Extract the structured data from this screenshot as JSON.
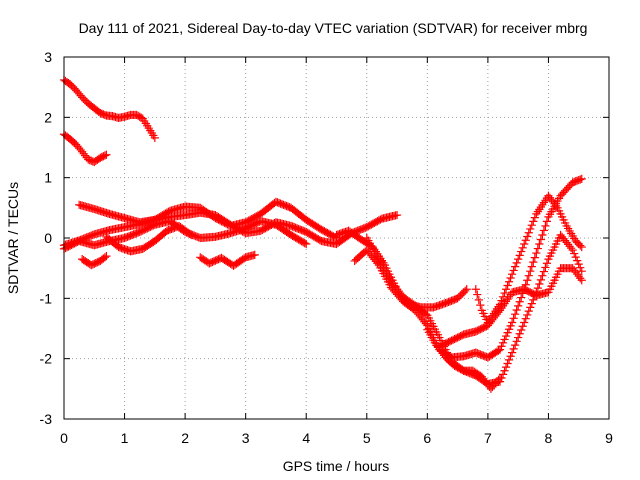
{
  "chart_data": {
    "type": "scatter",
    "title": "Day 111 of 2021, Sidereal Day-to-day VTEC variation (SDTVAR) for receiver mbrg",
    "xlabel": "GPS time / hours",
    "ylabel": "SDTVAR / TECUs",
    "xlim": [
      0,
      9
    ],
    "ylim": [
      -3,
      3
    ],
    "x_ticks": [
      "0",
      "1",
      "2",
      "3",
      "4",
      "5",
      "6",
      "7",
      "8",
      "9"
    ],
    "y_ticks": [
      "3",
      "2",
      "1",
      "0",
      "-1",
      "-2",
      "-3"
    ],
    "grid": true,
    "marker": "+",
    "color": "#ff0000",
    "series": [
      {
        "x": [
          0.0,
          0.1,
          0.2,
          0.3,
          0.4,
          0.5,
          0.6,
          0.7,
          0.8,
          0.9,
          1.0,
          1.1,
          1.2,
          1.3,
          1.4,
          1.5
        ],
        "y": [
          2.62,
          2.55,
          2.45,
          2.33,
          2.23,
          2.15,
          2.07,
          2.03,
          2.02,
          1.99,
          2.01,
          2.04,
          2.04,
          1.98,
          1.82,
          1.66
        ]
      },
      {
        "x": [
          0.0,
          0.1,
          0.2,
          0.3,
          0.4,
          0.5,
          0.6,
          0.7
        ],
        "y": [
          1.72,
          1.64,
          1.55,
          1.43,
          1.3,
          1.26,
          1.33,
          1.38
        ]
      },
      {
        "x": [
          0.0,
          0.25,
          0.5,
          0.75,
          1.0,
          1.25,
          1.5,
          1.75,
          2.0,
          2.25,
          2.5,
          2.75,
          3.0,
          3.25,
          3.5,
          3.75,
          4.0,
          4.25,
          4.5,
          4.75,
          5.0,
          5.25,
          5.5
        ],
        "y": [
          -0.12,
          -0.04,
          0.06,
          0.13,
          0.18,
          0.23,
          0.3,
          0.35,
          0.38,
          0.42,
          0.38,
          0.22,
          0.08,
          0.12,
          0.26,
          0.2,
          0.1,
          -0.05,
          -0.1,
          0.08,
          0.18,
          0.32,
          0.38
        ]
      },
      {
        "x": [
          0.25,
          0.5,
          0.75,
          1.0,
          1.25,
          1.5,
          1.75,
          2.0,
          2.25,
          2.5,
          2.75,
          3.0,
          3.25,
          3.5,
          3.75,
          4.0,
          4.25,
          4.5
        ],
        "y": [
          0.55,
          0.48,
          0.4,
          0.33,
          0.26,
          0.3,
          0.45,
          0.52,
          0.5,
          0.33,
          0.2,
          0.26,
          0.4,
          0.6,
          0.5,
          0.3,
          0.14,
          0.0
        ]
      },
      {
        "x": [
          0.0,
          0.25,
          0.5,
          0.75,
          1.0,
          1.25,
          1.5,
          1.75,
          2.0,
          2.25,
          2.5,
          2.75,
          3.0,
          3.25,
          3.5,
          3.75,
          4.0
        ],
        "y": [
          -0.18,
          -0.05,
          -0.12,
          -0.05,
          0.0,
          0.1,
          0.22,
          0.28,
          0.1,
          0.0,
          0.02,
          0.08,
          0.16,
          0.28,
          0.22,
          0.05,
          -0.1
        ]
      },
      {
        "x": [
          0.7,
          0.9,
          1.1,
          1.3,
          1.5,
          1.7,
          1.9,
          2.1
        ],
        "y": [
          0.02,
          -0.15,
          -0.22,
          -0.18,
          -0.05,
          0.12,
          0.2,
          0.05
        ]
      },
      {
        "x": [
          0.3,
          0.45,
          0.6,
          0.7
        ],
        "y": [
          -0.35,
          -0.45,
          -0.38,
          -0.3
        ]
      },
      {
        "x": [
          2.25,
          2.4,
          2.6,
          2.8,
          3.0,
          3.15
        ],
        "y": [
          -0.32,
          -0.42,
          -0.33,
          -0.46,
          -0.32,
          -0.28
        ]
      },
      {
        "x": [
          4.5,
          4.7,
          4.9,
          5.1,
          5.3,
          5.5,
          5.7,
          5.9,
          6.1,
          6.3,
          6.5,
          6.65
        ],
        "y": [
          0.05,
          0.12,
          -0.02,
          -0.15,
          -0.45,
          -0.85,
          -1.1,
          -1.15,
          -1.15,
          -1.08,
          -1.0,
          -0.85
        ]
      },
      {
        "x": [
          4.8,
          5.0,
          5.2,
          5.4,
          5.6,
          5.8,
          6.0,
          6.2,
          6.4,
          6.6,
          6.8,
          7.0,
          7.2,
          7.4,
          7.6,
          7.8,
          8.0,
          8.2,
          8.4,
          8.55
        ],
        "y": [
          -0.38,
          -0.2,
          -0.45,
          -0.82,
          -1.05,
          -1.2,
          -1.45,
          -1.85,
          -1.98,
          -1.96,
          -1.9,
          -1.98,
          -1.85,
          -1.4,
          -0.85,
          -0.25,
          0.35,
          0.7,
          0.92,
          0.98
        ]
      },
      {
        "x": [
          5.0,
          5.2,
          5.4,
          5.6,
          5.8,
          6.0,
          6.2,
          6.4,
          6.6,
          6.8,
          7.0,
          7.2,
          7.4,
          7.6,
          7.8,
          8.0,
          8.2,
          8.4,
          8.55
        ],
        "y": [
          0.0,
          -0.35,
          -0.72,
          -0.98,
          -1.12,
          -1.28,
          -1.65,
          -2.05,
          -2.2,
          -2.28,
          -2.42,
          -2.38,
          -1.9,
          -1.4,
          -0.9,
          -0.35,
          0.05,
          -0.2,
          -0.55
        ]
      },
      {
        "x": [
          6.0,
          6.15,
          6.3,
          6.45,
          6.6,
          6.75,
          6.9,
          7.05,
          7.2
        ],
        "y": [
          -1.52,
          -1.78,
          -1.98,
          -2.12,
          -2.2,
          -2.2,
          -2.3,
          -2.5,
          -2.32
        ]
      },
      {
        "x": [
          6.2,
          6.4,
          6.6,
          6.8,
          7.0,
          7.2,
          7.4,
          7.6,
          7.8,
          8.0,
          8.2,
          8.4,
          8.55
        ],
        "y": [
          -1.8,
          -1.7,
          -1.6,
          -1.55,
          -1.45,
          -1.2,
          -0.9,
          -0.85,
          -0.95,
          -0.9,
          -0.5,
          -0.5,
          -0.7
        ]
      },
      {
        "x": [
          6.8,
          6.9,
          7.0,
          7.2,
          7.4,
          7.6,
          7.8,
          8.0,
          8.15,
          8.3,
          8.45,
          8.55
        ],
        "y": [
          -0.85,
          -1.2,
          -1.4,
          -1.1,
          -0.6,
          -0.1,
          0.4,
          0.7,
          0.5,
          0.2,
          -0.05,
          -0.15
        ]
      }
    ]
  }
}
